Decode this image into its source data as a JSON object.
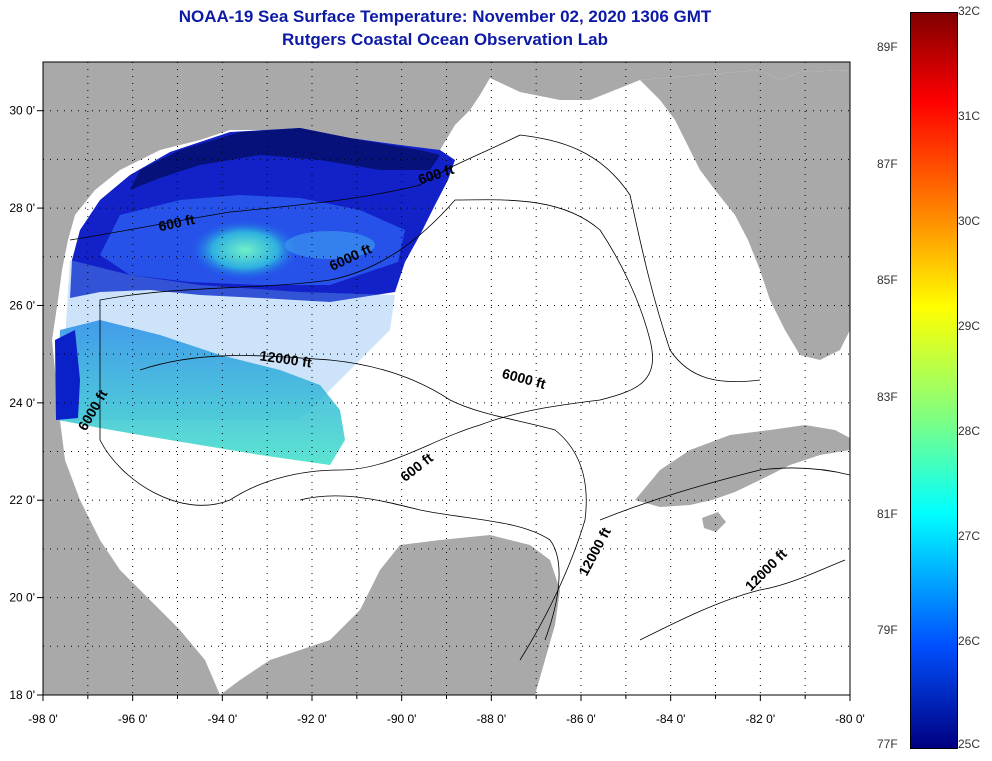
{
  "title": "NOAA-19 Sea Surface Temperature:  November 02, 2020 1306 GMT",
  "subtitle": "Rutgers Coastal Ocean Observation Lab",
  "map": {
    "lon_ticks": [
      "-98 0'",
      "-96 0'",
      "-94 0'",
      "-92 0'",
      "-90 0'",
      "-88 0'",
      "-86 0'",
      "-84 0'",
      "-82 0'",
      "-80 0'"
    ],
    "lat_ticks": [
      "30 0'",
      "28 0'",
      "26 0'",
      "24 0'",
      "22 0'",
      "20 0'",
      "18 0'"
    ],
    "lon_range": [
      -98,
      -80
    ],
    "lat_range": [
      18,
      31
    ],
    "contour_labels": [
      {
        "text": "600 ft",
        "lon": -89.2,
        "lat": 28.6,
        "angle": -18
      },
      {
        "text": "600 ft",
        "lon": -95.0,
        "lat": 27.6,
        "angle": -12
      },
      {
        "text": "6000 ft",
        "lon": -91.1,
        "lat": 26.9,
        "angle": -25
      },
      {
        "text": "12000 ft",
        "lon": -92.6,
        "lat": 24.8,
        "angle": 8
      },
      {
        "text": "6000 ft",
        "lon": -87.3,
        "lat": 24.4,
        "angle": 15
      },
      {
        "text": "6000 ft",
        "lon": -96.8,
        "lat": 23.8,
        "angle": -60
      },
      {
        "text": "600 ft",
        "lon": -89.6,
        "lat": 22.6,
        "angle": -38
      },
      {
        "text": "12000 ft",
        "lon": -85.6,
        "lat": 20.9,
        "angle": -62
      },
      {
        "text": "12000 ft",
        "lon": -81.8,
        "lat": 20.5,
        "angle": -45
      }
    ]
  },
  "colorbar": {
    "celsius_labels": [
      "32C",
      "31C",
      "30C",
      "29C",
      "28C",
      "27C",
      "26C",
      "25C"
    ],
    "fahrenheit_labels": [
      "89F",
      "87F",
      "85F",
      "83F",
      "81F",
      "79F",
      "77F"
    ],
    "celsius_range": [
      25,
      32
    ],
    "colors": {
      "top": "#800000",
      "red": "#ff0000",
      "orange": "#ff8c00",
      "yellow": "#ffff00",
      "green": "#80ff80",
      "cyan": "#00ffff",
      "blue": "#0050ff",
      "bottom": "#000080"
    }
  }
}
